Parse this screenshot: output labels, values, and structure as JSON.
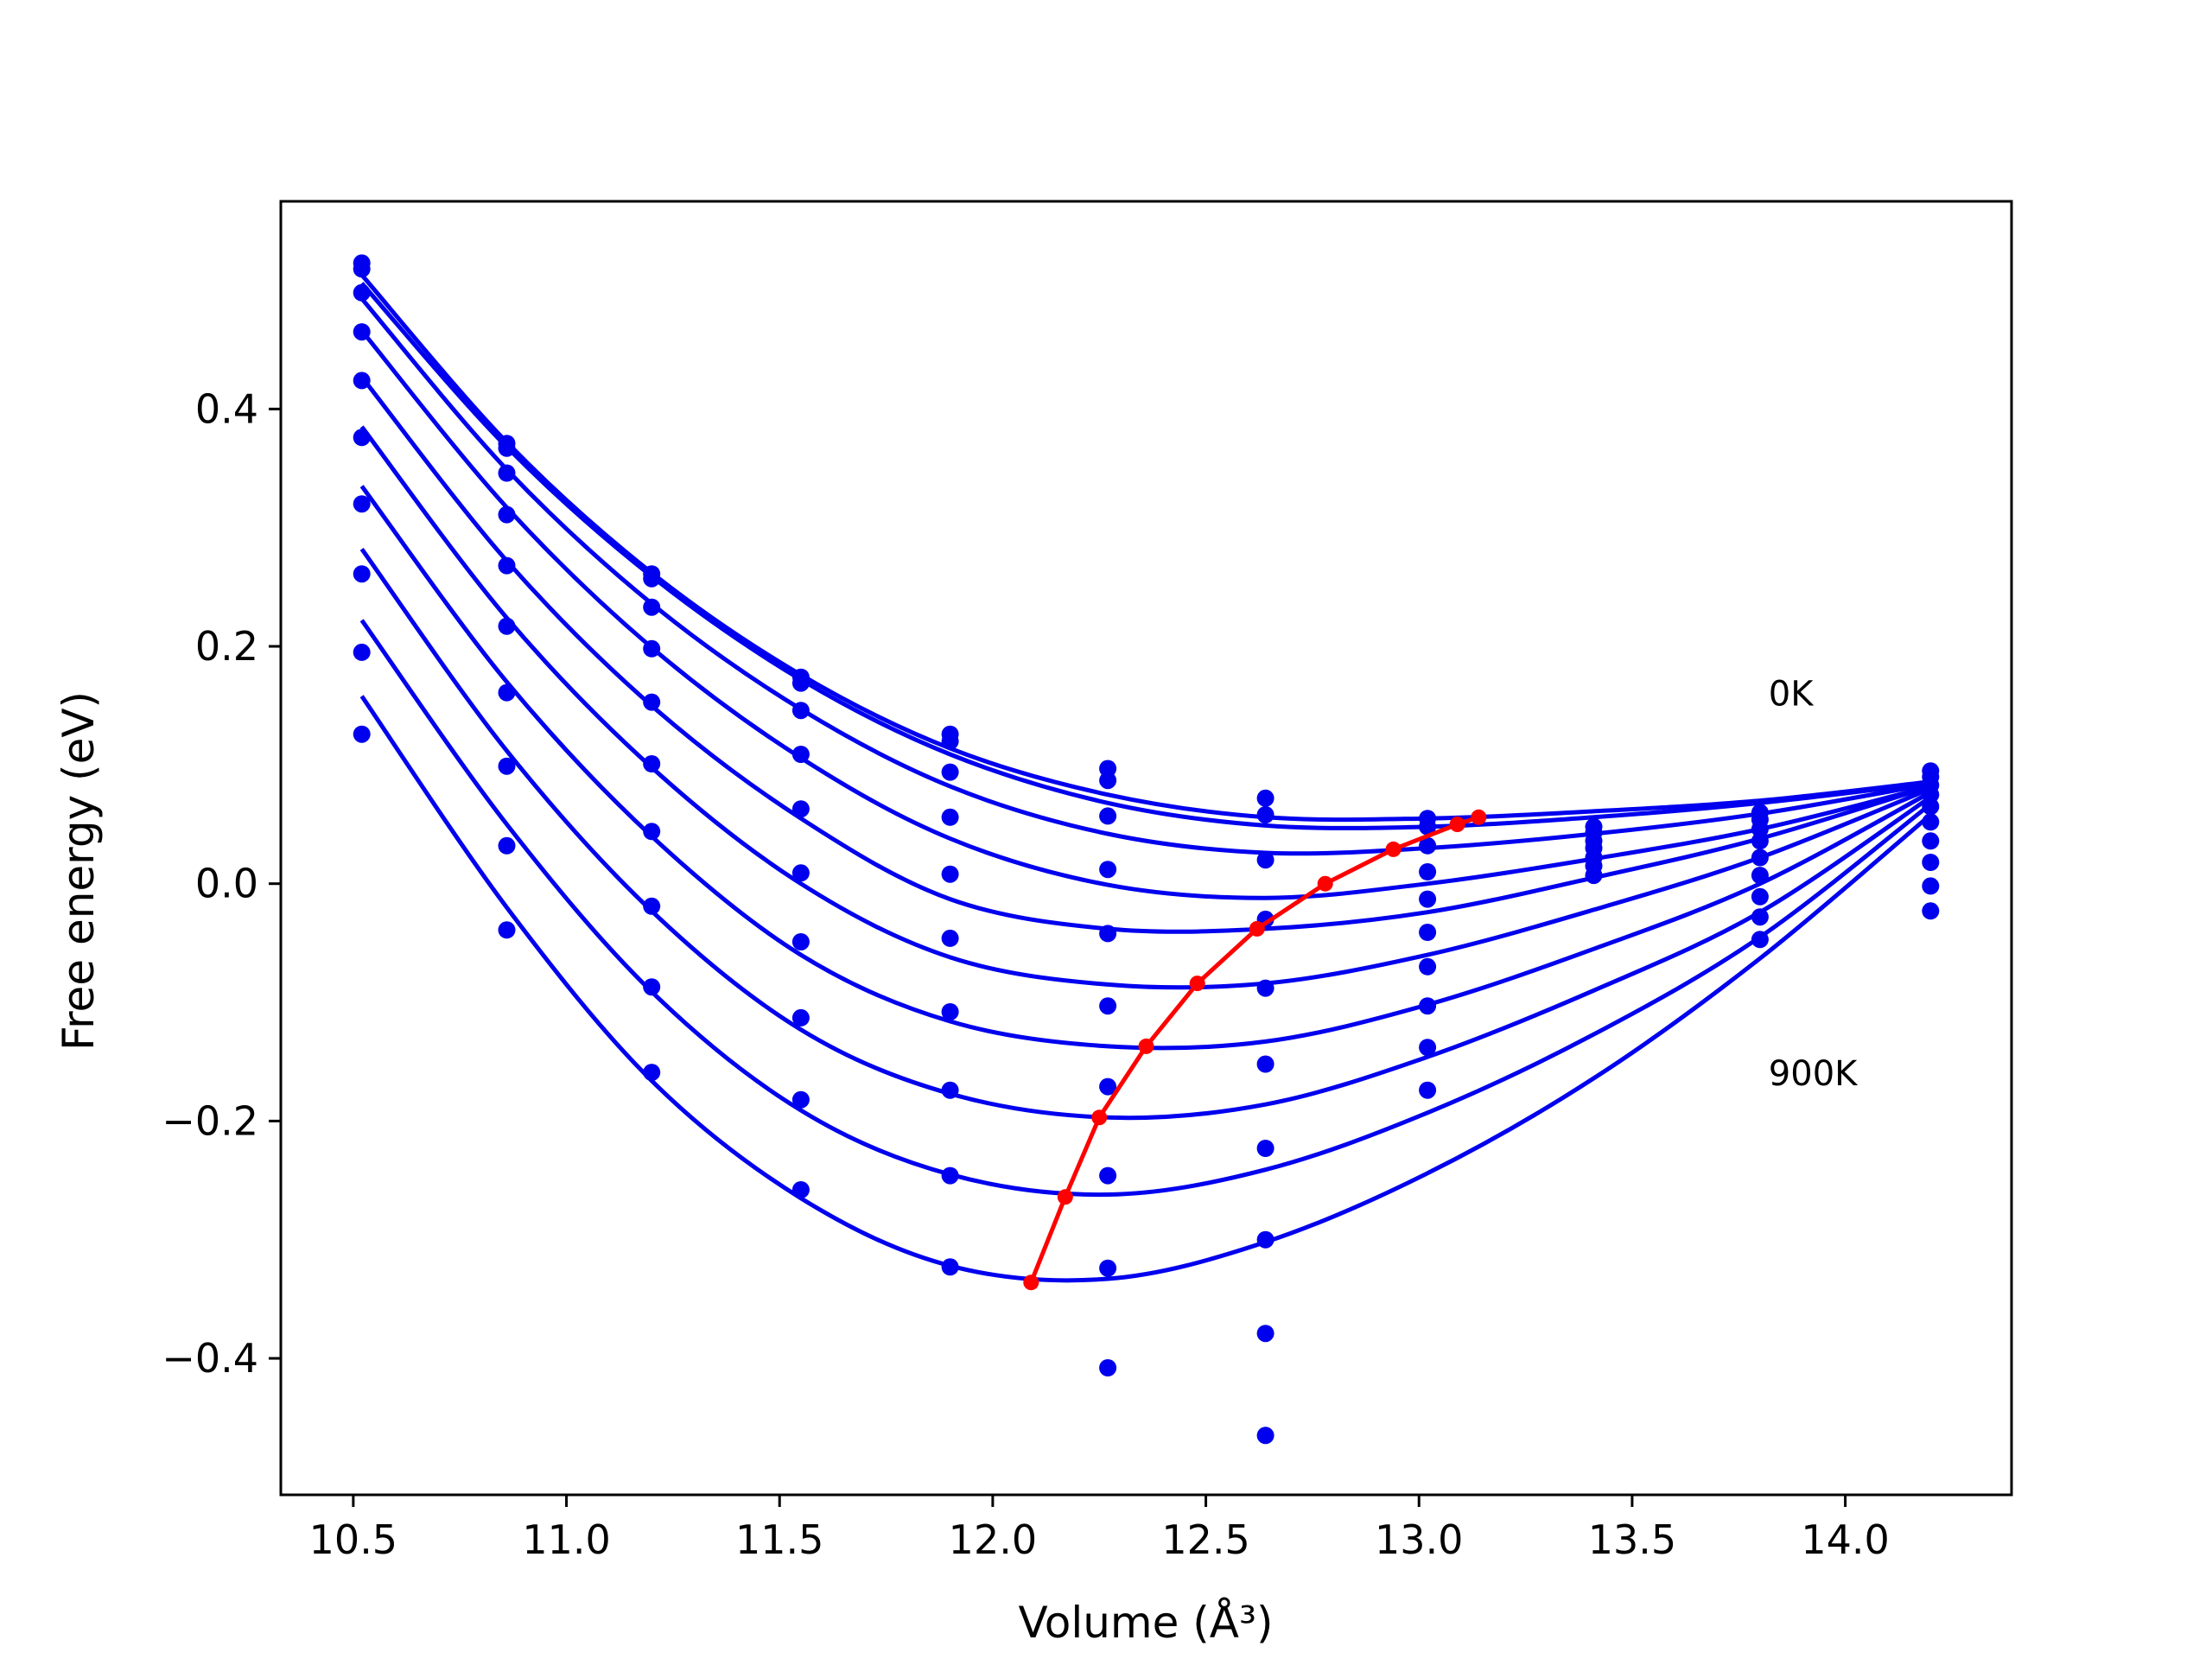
{
  "chart_data": {
    "type": "scatter",
    "xlabel": "Volume (Å³)",
    "ylabel": "Free energy (eV)",
    "xlim": [
      10.33,
      14.39
    ],
    "ylim": [
      -0.515,
      0.575
    ],
    "x_ticks": [
      10.5,
      11.0,
      11.5,
      12.0,
      12.5,
      13.0,
      13.5,
      14.0
    ],
    "x_tick_labels": [
      "10.5",
      "11.0",
      "11.5",
      "12.0",
      "12.5",
      "13.0",
      "13.5",
      "14.0"
    ],
    "y_ticks": [
      -0.4,
      -0.2,
      0.0,
      0.2,
      0.4
    ],
    "y_tick_labels": [
      "−0.4",
      "−0.2",
      "0.0",
      "0.2",
      "0.4"
    ],
    "grid": false,
    "colors": {
      "fit": "#0000ee",
      "data_points": "#0000ee",
      "minimum_path": "#ff0000",
      "axes": "#000000"
    },
    "annotations": [
      {
        "text": "0K",
        "x": 13.82,
        "y": 0.15
      },
      {
        "text": "900K",
        "x": 13.82,
        "y": -0.17
      }
    ],
    "volumes": [
      10.52,
      10.86,
      11.2,
      11.55,
      11.9,
      12.27,
      12.64,
      13.02,
      13.41,
      13.8,
      14.2
    ],
    "points": [
      [
        10.52,
        0.523
      ],
      [
        10.52,
        0.518
      ],
      [
        10.52,
        0.498
      ],
      [
        10.52,
        0.465
      ],
      [
        10.52,
        0.424
      ],
      [
        10.52,
        0.376
      ],
      [
        10.52,
        0.32
      ],
      [
        10.52,
        0.261
      ],
      [
        10.52,
        0.195
      ],
      [
        10.52,
        0.126
      ],
      [
        10.86,
        0.371
      ],
      [
        10.86,
        0.367
      ],
      [
        10.86,
        0.346
      ],
      [
        10.86,
        0.311
      ],
      [
        10.86,
        0.268
      ],
      [
        10.86,
        0.217
      ],
      [
        10.86,
        0.161
      ],
      [
        10.86,
        0.099
      ],
      [
        10.86,
        0.032
      ],
      [
        10.86,
        -0.039
      ],
      [
        11.2,
        0.261
      ],
      [
        11.2,
        0.257
      ],
      [
        11.2,
        0.233
      ],
      [
        11.2,
        0.198
      ],
      [
        11.2,
        0.153
      ],
      [
        11.2,
        0.101
      ],
      [
        11.2,
        0.044
      ],
      [
        11.2,
        -0.019
      ],
      [
        11.2,
        -0.087
      ],
      [
        11.2,
        -0.159
      ],
      [
        11.55,
        0.174
      ],
      [
        11.55,
        0.169
      ],
      [
        11.55,
        0.146
      ],
      [
        11.55,
        0.109
      ],
      [
        11.55,
        0.063
      ],
      [
        11.55,
        0.009
      ],
      [
        11.55,
        -0.049
      ],
      [
        11.55,
        -0.113
      ],
      [
        11.55,
        -0.182
      ],
      [
        11.55,
        -0.258
      ],
      [
        11.9,
        0.126
      ],
      [
        11.9,
        0.12
      ],
      [
        11.9,
        0.094
      ],
      [
        11.9,
        0.056
      ],
      [
        11.9,
        0.008
      ],
      [
        11.9,
        -0.046
      ],
      [
        11.9,
        -0.108
      ],
      [
        11.9,
        -0.174
      ],
      [
        11.9,
        -0.246
      ],
      [
        11.9,
        -0.323
      ],
      [
        12.27,
        0.097
      ],
      [
        12.27,
        0.087
      ],
      [
        12.27,
        0.057
      ],
      [
        12.27,
        0.012
      ],
      [
        12.27,
        -0.042
      ],
      [
        12.27,
        -0.103
      ],
      [
        12.27,
        -0.171
      ],
      [
        12.27,
        -0.246
      ],
      [
        12.27,
        -0.324
      ],
      [
        12.27,
        -0.408
      ],
      [
        12.64,
        0.072
      ],
      [
        12.64,
        0.058
      ],
      [
        12.64,
        0.02
      ],
      [
        12.64,
        -0.03
      ],
      [
        12.64,
        -0.088
      ],
      [
        12.64,
        -0.152
      ],
      [
        12.64,
        -0.223
      ],
      [
        12.64,
        -0.3
      ],
      [
        12.64,
        -0.379
      ],
      [
        12.64,
        -0.465
      ],
      [
        13.02,
        0.055
      ],
      [
        13.02,
        0.048
      ],
      [
        13.02,
        0.032
      ],
      [
        13.02,
        0.01
      ],
      [
        13.02,
        -0.013
      ],
      [
        13.02,
        -0.041
      ],
      [
        13.02,
        -0.07
      ],
      [
        13.02,
        -0.103
      ],
      [
        13.02,
        -0.138
      ],
      [
        13.02,
        -0.174
      ],
      [
        13.41,
        0.048
      ],
      [
        13.41,
        0.043
      ],
      [
        13.41,
        0.036
      ],
      [
        13.41,
        0.03
      ],
      [
        13.41,
        0.022
      ],
      [
        13.41,
        0.015
      ],
      [
        13.41,
        0.007
      ],
      [
        13.8,
        0.06
      ],
      [
        13.8,
        0.054
      ],
      [
        13.8,
        0.046
      ],
      [
        13.8,
        0.036
      ],
      [
        13.8,
        0.022
      ],
      [
        13.8,
        0.007
      ],
      [
        13.8,
        -0.011
      ],
      [
        13.8,
        -0.028
      ],
      [
        13.8,
        -0.047
      ],
      [
        14.2,
        0.095
      ],
      [
        14.2,
        0.09
      ],
      [
        14.2,
        0.083
      ],
      [
        14.2,
        0.075
      ],
      [
        14.2,
        0.065
      ],
      [
        14.2,
        0.052
      ],
      [
        14.2,
        0.036
      ],
      [
        14.2,
        0.018
      ],
      [
        14.2,
        -0.002
      ],
      [
        14.2,
        -0.023
      ]
    ],
    "series": [
      {
        "x": [
          10.52,
          10.86,
          11.2,
          11.55,
          11.9,
          12.27,
          12.64,
          13.02,
          13.41,
          13.8,
          14.2
        ],
        "values": [
          0.513,
          0.372,
          0.262,
          0.176,
          0.114,
          0.075,
          0.056,
          0.055,
          0.061,
          0.07,
          0.086
        ]
      },
      {
        "x": [
          10.52,
          10.86,
          11.2,
          11.55,
          11.9,
          12.27,
          12.64,
          13.02,
          13.41,
          13.8,
          14.2
        ],
        "values": [
          0.506,
          0.368,
          0.259,
          0.172,
          0.109,
          0.068,
          0.049,
          0.048,
          0.056,
          0.068,
          0.085
        ]
      },
      {
        "x": [
          10.52,
          10.86,
          11.2,
          11.55,
          11.9,
          12.27,
          12.64,
          13.02,
          13.41,
          13.8,
          14.2
        ],
        "values": [
          0.493,
          0.349,
          0.236,
          0.147,
          0.082,
          0.042,
          0.026,
          0.03,
          0.042,
          0.059,
          0.084
        ]
      },
      {
        "x": [
          10.52,
          10.86,
          11.2,
          11.55,
          11.9,
          12.27,
          12.64,
          13.02,
          13.41,
          13.8,
          14.2
        ],
        "values": [
          0.466,
          0.317,
          0.199,
          0.106,
          0.038,
          -0.001,
          -0.012,
          0.0,
          0.021,
          0.046,
          0.082
        ]
      },
      {
        "x": [
          10.52,
          10.86,
          11.2,
          11.55,
          11.9,
          12.27,
          12.64,
          13.02,
          13.41,
          13.8,
          14.2
        ],
        "values": [
          0.427,
          0.272,
          0.15,
          0.055,
          -0.013,
          -0.038,
          -0.038,
          -0.024,
          0.005,
          0.038,
          0.082
        ]
      },
      {
        "x": [
          10.52,
          10.86,
          11.2,
          11.55,
          11.9,
          12.27,
          12.64,
          13.02,
          13.41,
          13.8,
          14.2
        ],
        "values": [
          0.385,
          0.224,
          0.098,
          0.0,
          -0.062,
          -0.085,
          -0.084,
          -0.06,
          -0.022,
          0.022,
          0.08
        ]
      },
      {
        "x": [
          10.52,
          10.86,
          11.2,
          11.55,
          11.9,
          12.27,
          12.64,
          13.02,
          13.41,
          13.8,
          14.2
        ],
        "values": [
          0.335,
          0.17,
          0.04,
          -0.06,
          -0.116,
          -0.137,
          -0.133,
          -0.102,
          -0.055,
          0.0,
          0.077
        ]
      },
      {
        "x": [
          10.52,
          10.86,
          11.2,
          11.55,
          11.9,
          12.27,
          12.64,
          13.02,
          13.41,
          13.8,
          14.2
        ],
        "values": [
          0.282,
          0.112,
          -0.023,
          -0.123,
          -0.177,
          -0.197,
          -0.186,
          -0.146,
          -0.09,
          -0.024,
          0.073
        ]
      },
      {
        "x": [
          10.52,
          10.86,
          11.2,
          11.55,
          11.9,
          12.27,
          12.64,
          13.02,
          13.41,
          13.8,
          14.2
        ],
        "values": [
          0.222,
          0.05,
          -0.091,
          -0.191,
          -0.245,
          -0.262,
          -0.241,
          -0.193,
          -0.127,
          -0.045,
          0.067
        ]
      },
      {
        "x": [
          10.52,
          10.86,
          11.2,
          11.55,
          11.9,
          12.27,
          12.64,
          13.02,
          13.41,
          13.8,
          14.2
        ],
        "values": [
          0.158,
          -0.02,
          -0.166,
          -0.265,
          -0.322,
          -0.333,
          -0.302,
          -0.244,
          -0.164,
          -0.063,
          0.058
        ]
      }
    ],
    "minimum_path": {
      "x": [
        13.14,
        13.09,
        12.94,
        12.78,
        12.62,
        12.48,
        12.36,
        12.25,
        12.17,
        12.09
      ],
      "y": [
        0.056,
        0.05,
        0.029,
        0.0,
        -0.038,
        -0.084,
        -0.137,
        -0.197,
        -0.264,
        -0.336
      ]
    }
  }
}
